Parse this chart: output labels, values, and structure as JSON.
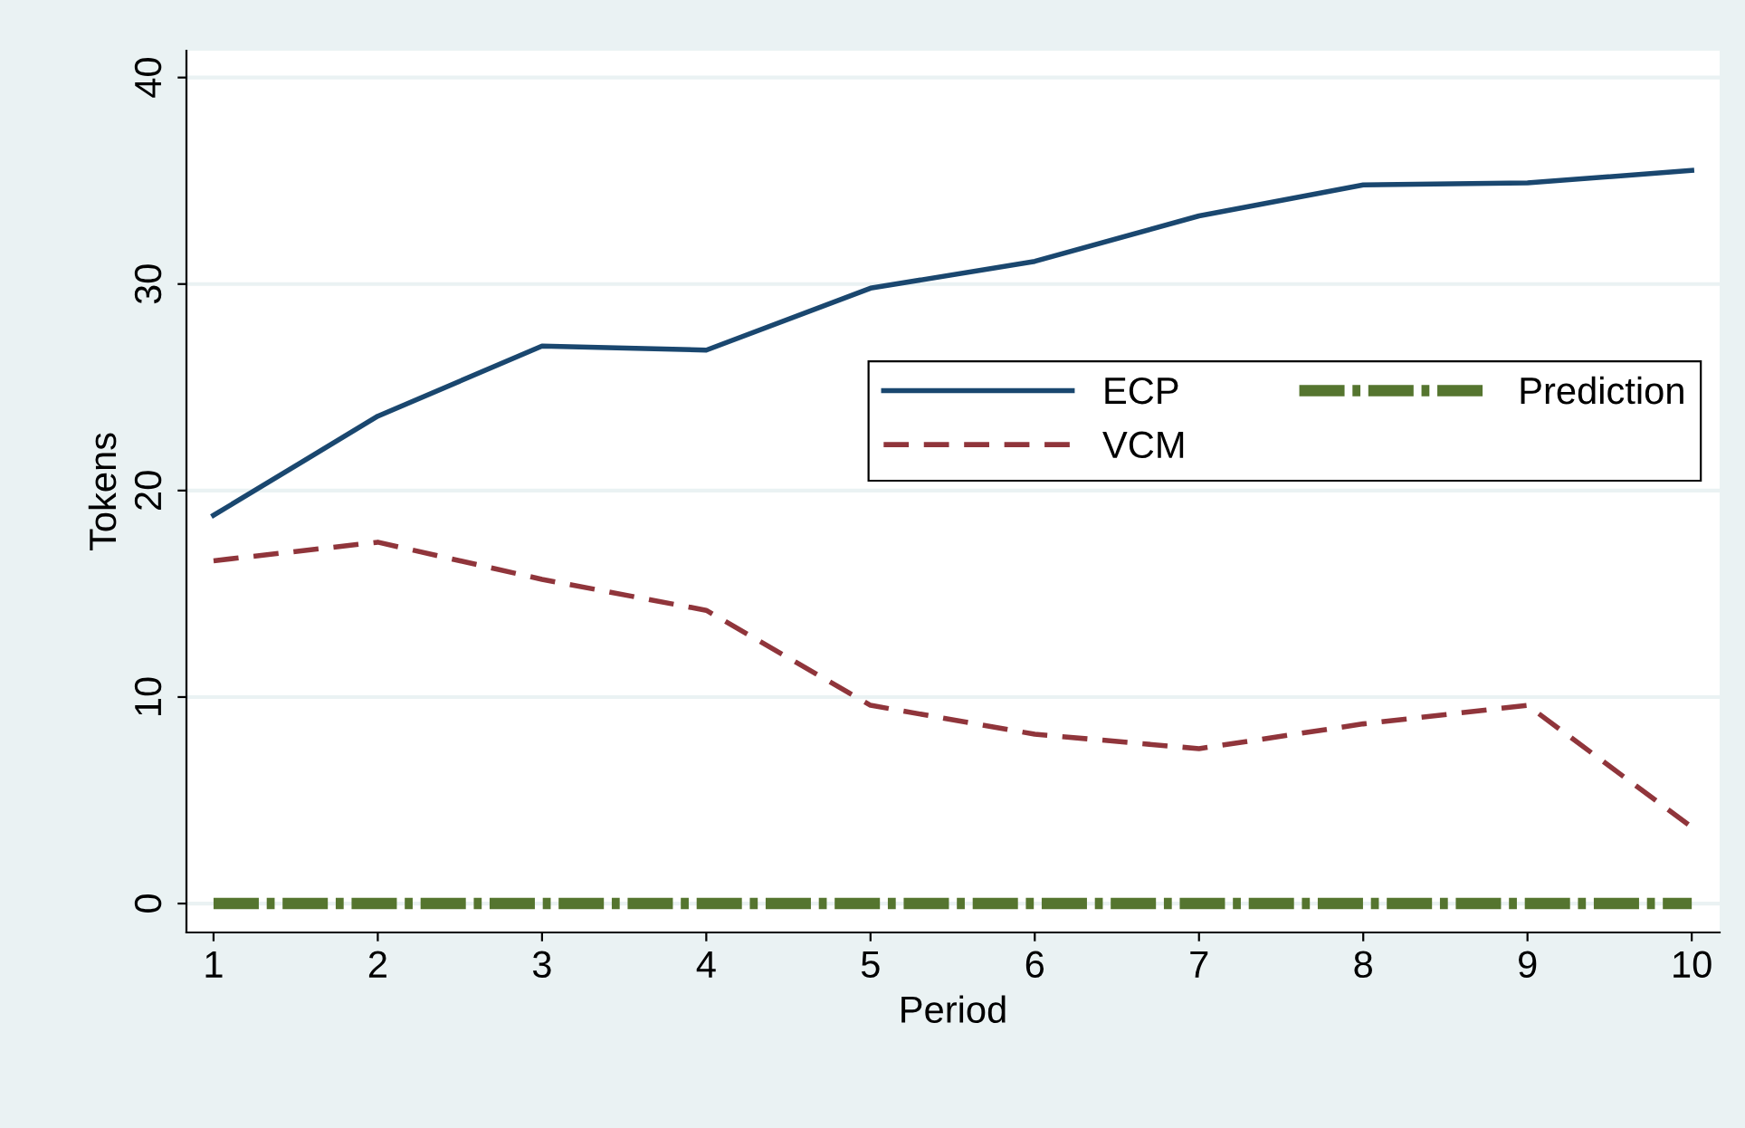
{
  "chart_data": {
    "type": "line",
    "xlabel": "Period",
    "ylabel": "Tokens",
    "x": [
      1,
      2,
      3,
      4,
      5,
      6,
      7,
      8,
      9,
      10
    ],
    "series": [
      {
        "name": "ECP",
        "color": "#1a476f",
        "line_style": "solid",
        "values": [
          18.8,
          23.6,
          27.0,
          26.8,
          29.8,
          31.1,
          33.3,
          34.8,
          34.9,
          35.5
        ]
      },
      {
        "name": "VCM",
        "color": "#90353b",
        "line_style": "dashed",
        "values": [
          16.6,
          17.5,
          15.7,
          14.2,
          9.6,
          8.2,
          7.5,
          8.7,
          9.6,
          3.7
        ]
      },
      {
        "name": "Prediction",
        "color": "#55752f",
        "line_style": "dashdot",
        "values": [
          0,
          0,
          0,
          0,
          0,
          0,
          0,
          0,
          0,
          0
        ]
      }
    ],
    "xlim": [
      0.835,
      10.17
    ],
    "ylim": [
      -1.4,
      41.3
    ],
    "xticks": [
      1,
      2,
      3,
      4,
      5,
      6,
      7,
      8,
      9,
      10
    ],
    "yticks": [
      0,
      10,
      20,
      30,
      40
    ],
    "grid": "y",
    "legend": "right",
    "marker": "none"
  }
}
